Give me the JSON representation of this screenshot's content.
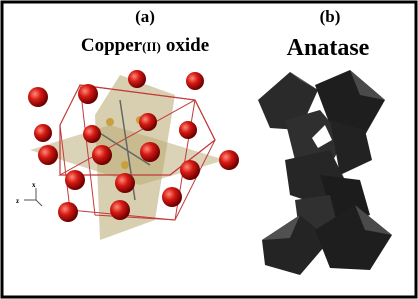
{
  "panels": [
    {
      "label": "(a)",
      "title": {
        "main": "Copper",
        "sub": "(II)",
        "rest": "oxide"
      },
      "axes": [
        "x",
        "z"
      ]
    },
    {
      "label": "(b)",
      "title": "Anatase"
    }
  ]
}
